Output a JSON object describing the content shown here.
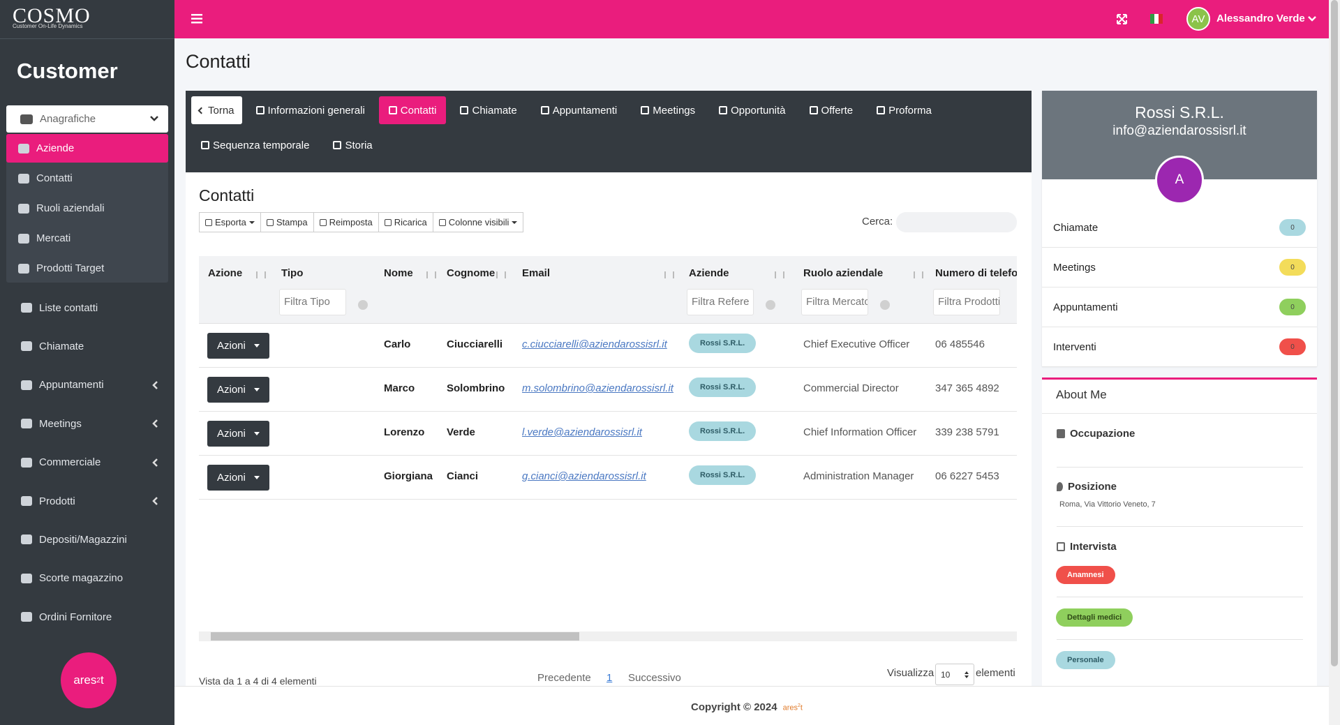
{
  "brand": {
    "logo": "COSMO",
    "tagline": "Customer On-Life Dynamics"
  },
  "topbar": {
    "user_initials": "AV",
    "user_name": "Alessandro Verde"
  },
  "sidebar": {
    "section": "Customer",
    "group": {
      "label": "Anagrafiche",
      "items": [
        "Aziende",
        "Contatti",
        "Ruoli aziendali",
        "Mercati",
        "Prodotti Target"
      ],
      "active": 0
    },
    "menu": [
      {
        "label": "Liste contatti",
        "has_submenu": false
      },
      {
        "label": "Chiamate",
        "has_submenu": false
      },
      {
        "label": "Appuntamenti",
        "has_submenu": true
      },
      {
        "label": "Meetings",
        "has_submenu": true
      },
      {
        "label": "Commerciale",
        "has_submenu": true
      },
      {
        "label": "Prodotti",
        "has_submenu": true
      },
      {
        "label": "Depositi/Magazzini",
        "has_submenu": false
      },
      {
        "label": "Scorte magazzino",
        "has_submenu": false
      },
      {
        "label": "Ordini Fornitore",
        "has_submenu": false
      }
    ],
    "footer_logo": {
      "text": "ares",
      "sup": "2",
      "tail": "t"
    }
  },
  "page_title": "Contatti",
  "tabs": {
    "back": "Torna",
    "items": [
      "Informazioni generali",
      "Contatti",
      "Chiamate",
      "Appuntamenti",
      "Meetings",
      "Opportunità",
      "Offerte",
      "Proforma",
      "Sequenza temporale",
      "Storia"
    ],
    "active": 1
  },
  "panel": {
    "title": "Contatti",
    "toolbar": [
      "Esporta",
      "Stampa",
      "Reimposta",
      "Ricarica",
      "Colonne visibili"
    ],
    "search_label": "Cerca:",
    "table": {
      "columns": [
        "Azione",
        "Tipo",
        "Nome",
        "Cognome",
        "Email",
        "Aziende",
        "Ruolo aziendale",
        "Numero di telefo"
      ],
      "filters": [
        null,
        "Filtra Tipo",
        null,
        null,
        null,
        "Filtra Refere",
        "Filtra Mercato",
        "Filtra Prodotti"
      ],
      "action_label": "Azioni",
      "rows": [
        [
          "Carlo",
          "Ciucciarelli",
          "c.ciucciarelli@aziendarossisrl.it",
          "Rossi S.R.L.",
          "Chief Executive Officer",
          "06 485546"
        ],
        [
          "Marco",
          "Solombrino",
          "m.solombrino@aziendarossisrl.it",
          "Rossi S.R.L.",
          "Commercial Director",
          "347 365 4892"
        ],
        [
          "Lorenzo",
          "Verde",
          "l.verde@aziendarossisrl.it",
          "Rossi S.R.L.",
          "Chief Information Officer",
          "339 238 5791"
        ],
        [
          "Giorgiana",
          "Cianci",
          "g.cianci@aziendarossisrl.it",
          "Rossi S.R.L.",
          "Administration Manager",
          "06 6227 5453"
        ]
      ]
    },
    "info": "Vista da 1 a 4 di 4 elementi",
    "pagination": {
      "prev": "Precedente",
      "page": 1,
      "next": "Successivo"
    },
    "length": {
      "label": "Visualizza",
      "value": 10,
      "suffix": "elementi"
    }
  },
  "profile": {
    "name": "Rossi S.R.L.",
    "email": "info@aziendarossisrl.it",
    "avatar": "A",
    "stats": [
      {
        "label": "Chiamate",
        "value": 0,
        "color": "#a9d8e0"
      },
      {
        "label": "Meetings",
        "value": 0,
        "color": "#f3dc5a"
      },
      {
        "label": "Appuntamenti",
        "value": 0,
        "color": "#8fcf5d"
      },
      {
        "label": "Interventi",
        "value": 0,
        "color": "#f0504a"
      }
    ],
    "about": {
      "title": "About Me",
      "occupation": "Occupazione",
      "position": "Posizione",
      "address": "Roma, Via Vittorio Veneto, 7",
      "interview": "Intervista",
      "tags": [
        {
          "label": "Anamnesi",
          "color": "#f0504a",
          "text": "#ffffff"
        },
        {
          "label": "Dettagli medici",
          "color": "#8fcf5d",
          "text": "#2f4a16"
        },
        {
          "label": "Personale",
          "color": "#a9d8e0",
          "text": "#2e5c66"
        }
      ]
    }
  },
  "footer": {
    "copyright": "Copyright © 2024"
  }
}
